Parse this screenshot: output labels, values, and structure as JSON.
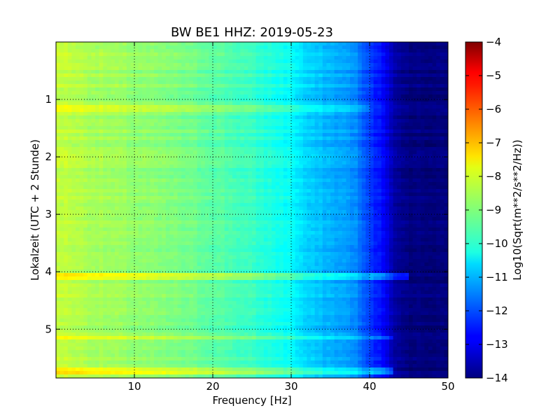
{
  "chart_data": {
    "type": "heatmap",
    "title": "BW BE1 HHZ: 2019-05-23",
    "xlabel": "Frequency [Hz]",
    "ylabel": "Lokalzeit (UTC + 2 Stunde)",
    "xlim": [
      0,
      50
    ],
    "ylim": [
      5.85,
      0
    ],
    "x_ticks": [
      10,
      20,
      30,
      40,
      50
    ],
    "x_tick_labels": [
      "10",
      "20",
      "30",
      "40",
      "50"
    ],
    "y_ticks": [
      1,
      2,
      3,
      4,
      5
    ],
    "y_tick_labels": [
      "1",
      "2",
      "3",
      "4",
      "5"
    ],
    "grid": true,
    "colormap": "jet",
    "colorbar": {
      "label": "Log10(Sqrt(m**2/s**2/Hz))",
      "range": [
        -14,
        -4
      ],
      "ticks": [
        -4,
        -5,
        -6,
        -7,
        -8,
        -9,
        -10,
        -11,
        -12,
        -13,
        -14
      ],
      "tick_labels": [
        "−4",
        "−5",
        "−6",
        "−7",
        "−8",
        "−9",
        "−10",
        "−11",
        "−12",
        "−13",
        "−14"
      ]
    },
    "spectrum_profile": {
      "frequency_hz": [
        0,
        2,
        5,
        10,
        15,
        20,
        25,
        30,
        32,
        35,
        38,
        40,
        42,
        43,
        44,
        46,
        50
      ],
      "log10_psd": [
        -8.3,
        -8.4,
        -8.6,
        -8.8,
        -9.0,
        -9.3,
        -9.7,
        -10.2,
        -10.7,
        -11.0,
        -11.3,
        -12.2,
        -12.8,
        -13.5,
        -13.9,
        -14,
        -14
      ]
    },
    "elevated_bands": [
      {
        "time_h": 4.1,
        "log10_psd_offset": 0.8,
        "max_frequency_hz": 45
      },
      {
        "time_h": 5.72,
        "log10_psd_offset": 0.9,
        "max_frequency_hz": 43
      },
      {
        "time_h": 1.15,
        "log10_psd_offset": 0.4,
        "max_frequency_hz": 40
      },
      {
        "time_h": 5.15,
        "log10_psd_offset": 0.5,
        "max_frequency_hz": 43
      }
    ]
  }
}
